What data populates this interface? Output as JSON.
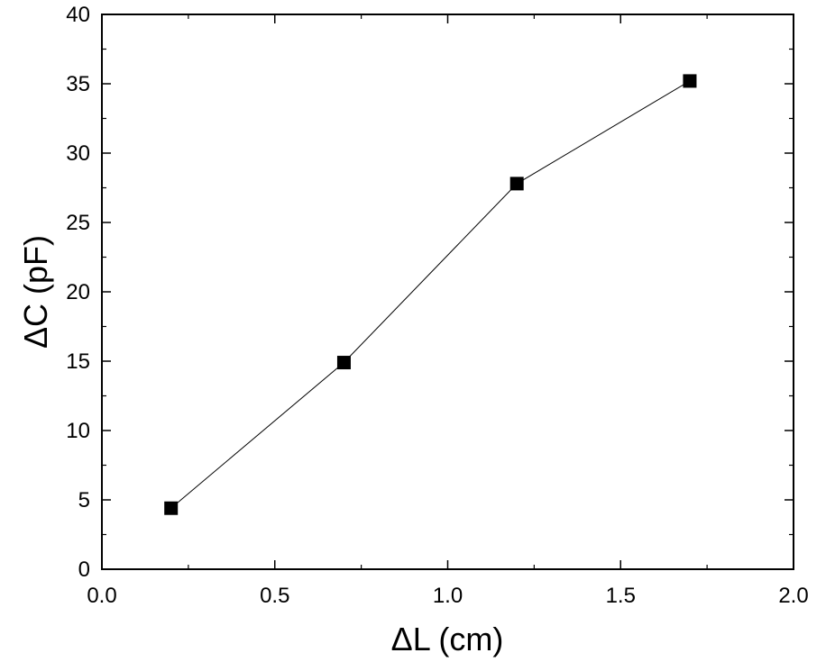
{
  "chart_data": {
    "type": "line",
    "title": "",
    "xlabel": "ΔL (cm)",
    "ylabel": "ΔC (pF)",
    "xlim": [
      0.0,
      2.0
    ],
    "ylim": [
      0,
      40
    ],
    "xticks": [
      "0.0",
      "0.5",
      "1.0",
      "1.5",
      "2.0"
    ],
    "yticks": [
      "0",
      "5",
      "10",
      "15",
      "20",
      "25",
      "30",
      "35",
      "40"
    ],
    "grid": false,
    "legend": "none",
    "series": [
      {
        "marker": "square",
        "color": "#000000",
        "x": [
          0.2,
          0.7,
          1.2,
          1.7
        ],
        "y": [
          4.4,
          14.9,
          27.8,
          35.2
        ]
      }
    ]
  }
}
